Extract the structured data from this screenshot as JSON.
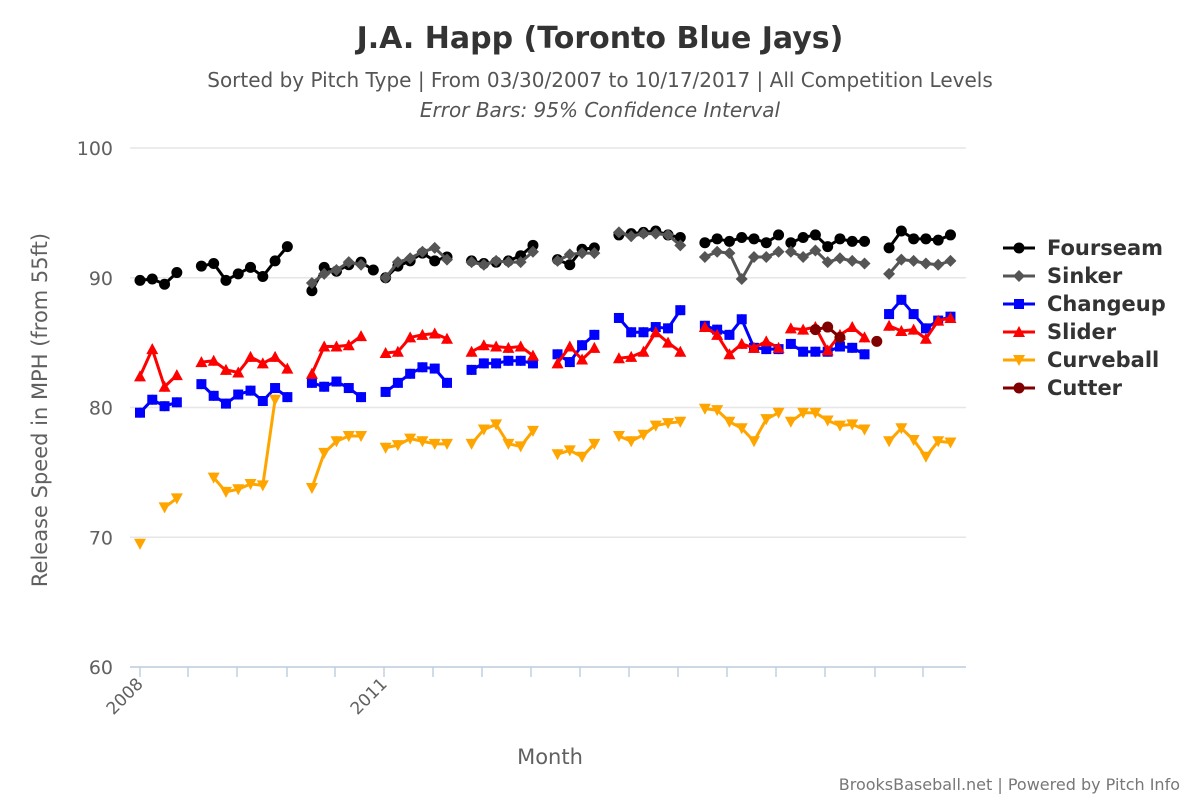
{
  "chart_data": {
    "type": "line",
    "title": "J.A. Happ (Toronto Blue Jays)",
    "subtitle": "Sorted by Pitch Type | From 03/30/2007 to 10/17/2017 | All Competition Levels",
    "subtitle2": "Error Bars: 95% Confidence Interval",
    "xlabel": "Month",
    "ylabel": "Release Speed in MPH (from 55ft)",
    "ylim": [
      60,
      100
    ],
    "yticks": [
      "60",
      "70",
      "80",
      "90",
      "100"
    ],
    "xtick_labels": [
      "2008",
      "2011"
    ],
    "grid": true,
    "legend_position": "right",
    "credit": "BrooksBaseball.net | Powered by Pitch Info",
    "series": [
      {
        "name": "Fourseam",
        "color": "#000000",
        "marker": "circle",
        "segments": [
          [
            89.8,
            89.9,
            89.5,
            90.4
          ],
          [
            90.9,
            91.1,
            89.8,
            90.3,
            90.8,
            90.1,
            91.3,
            92.4
          ],
          [
            89.0,
            90.8,
            90.5,
            91.0,
            91.2,
            90.6
          ],
          [
            90.0,
            90.9,
            91.3,
            91.9,
            91.3,
            91.6
          ],
          [
            91.3,
            91.1,
            91.2,
            91.3,
            91.7,
            92.5
          ],
          [
            91.4,
            91.0,
            92.2,
            92.3
          ],
          [
            93.3,
            93.4,
            93.5,
            93.6,
            93.3,
            93.1
          ],
          [
            92.7,
            93.0,
            92.8,
            93.1,
            93.0,
            92.7,
            93.3
          ],
          [
            92.7,
            93.1,
            93.3,
            92.4,
            93.0,
            92.8,
            92.8
          ],
          [
            92.3,
            93.6,
            93.0,
            93.0,
            92.9,
            93.3
          ]
        ]
      },
      {
        "name": "Sinker",
        "color": "#555555",
        "marker": "diamond",
        "segments": [
          [
            89.6,
            90.3,
            90.6,
            91.2,
            91.0
          ],
          [
            90.0,
            91.2,
            91.5,
            92.0,
            92.3,
            91.4
          ],
          [
            91.2,
            91.0,
            91.3,
            91.2,
            91.2,
            92.0
          ],
          [
            91.3,
            91.8,
            91.9,
            91.9
          ],
          [
            93.5,
            93.2,
            93.4,
            93.4,
            93.3,
            92.5
          ],
          [
            91.6,
            92.0,
            91.9,
            89.9,
            91.6,
            91.6,
            92.0
          ],
          [
            92.0,
            91.6,
            92.1,
            91.2,
            91.5,
            91.3,
            91.1
          ],
          [
            90.3,
            91.4,
            91.3,
            91.1,
            91.0,
            91.3
          ]
        ]
      },
      {
        "name": "Changeup",
        "color": "#0000ff",
        "marker": "square",
        "segments": [
          [
            79.6,
            80.6,
            80.1,
            80.4
          ],
          [
            81.8,
            80.9,
            80.3,
            81.0,
            81.3,
            80.5,
            81.5,
            80.8
          ],
          [
            81.9,
            81.6,
            82.0,
            81.5,
            80.8
          ],
          [
            81.2,
            81.9,
            82.6,
            83.1,
            83.0,
            81.9
          ],
          [
            82.9,
            83.4,
            83.4,
            83.6,
            83.6,
            83.4
          ],
          [
            84.1,
            83.5,
            84.8,
            85.6
          ],
          [
            86.9,
            85.8,
            85.8,
            86.2,
            86.1,
            87.5
          ],
          [
            86.3,
            86.0,
            85.6,
            86.8,
            84.6,
            84.5,
            84.5
          ],
          [
            84.9,
            84.3,
            84.3,
            84.3,
            84.7,
            84.6,
            84.1
          ],
          [
            87.2,
            88.3,
            87.2,
            86.1,
            86.7,
            87.0
          ]
        ]
      },
      {
        "name": "Slider",
        "color": "#ff0000",
        "marker": "triangle-up",
        "segments": [
          [
            82.4,
            84.5,
            81.6,
            82.5
          ],
          [
            83.5,
            83.6,
            82.9,
            82.7,
            83.9,
            83.4,
            83.9,
            83.0
          ],
          [
            82.6,
            84.7,
            84.7,
            84.8,
            85.5
          ],
          [
            84.2,
            84.3,
            85.4,
            85.6,
            85.7,
            85.3
          ],
          [
            84.3,
            84.8,
            84.7,
            84.6,
            84.7,
            84.0
          ],
          [
            83.4,
            84.7,
            83.7,
            84.6
          ],
          [
            83.8,
            83.9,
            84.3,
            85.8,
            85.0,
            84.3
          ],
          [
            86.2,
            85.6,
            84.1,
            84.9,
            84.6,
            85.1,
            84.6
          ],
          [
            86.1,
            86.0,
            86.2,
            84.4,
            85.6,
            86.2,
            85.4
          ],
          [
            86.3,
            85.9,
            86.0,
            85.3,
            86.7,
            86.9
          ]
        ]
      },
      {
        "name": "Curveball",
        "color": "#ffa500",
        "marker": "triangle-down",
        "segments": [
          [
            69.5,
            null,
            72.3,
            73.0
          ],
          [
            74.6,
            73.5,
            73.7,
            74.1,
            74.0,
            80.6
          ],
          [
            73.8,
            76.5,
            77.4,
            77.8,
            77.8
          ],
          [
            76.9,
            77.1,
            77.6,
            77.4,
            77.2,
            77.2
          ],
          [
            77.2,
            78.3,
            78.7,
            77.2,
            77.0,
            78.2
          ],
          [
            76.4,
            76.7,
            76.2,
            77.2
          ],
          [
            77.8,
            77.4,
            77.9,
            78.6,
            78.8,
            78.9
          ],
          [
            79.9,
            79.8,
            78.9,
            78.4,
            77.4,
            79.1,
            79.6
          ],
          [
            78.9,
            79.6,
            79.6,
            79.0,
            78.6,
            78.7,
            78.3
          ],
          [
            77.4,
            78.4,
            77.5,
            76.2,
            77.4,
            77.3
          ]
        ]
      },
      {
        "name": "Cutter",
        "color": "#800000",
        "marker": "circle",
        "segments": [
          [
            86.0,
            86.2,
            85.4,
            null,
            null,
            85.1
          ]
        ]
      }
    ]
  }
}
